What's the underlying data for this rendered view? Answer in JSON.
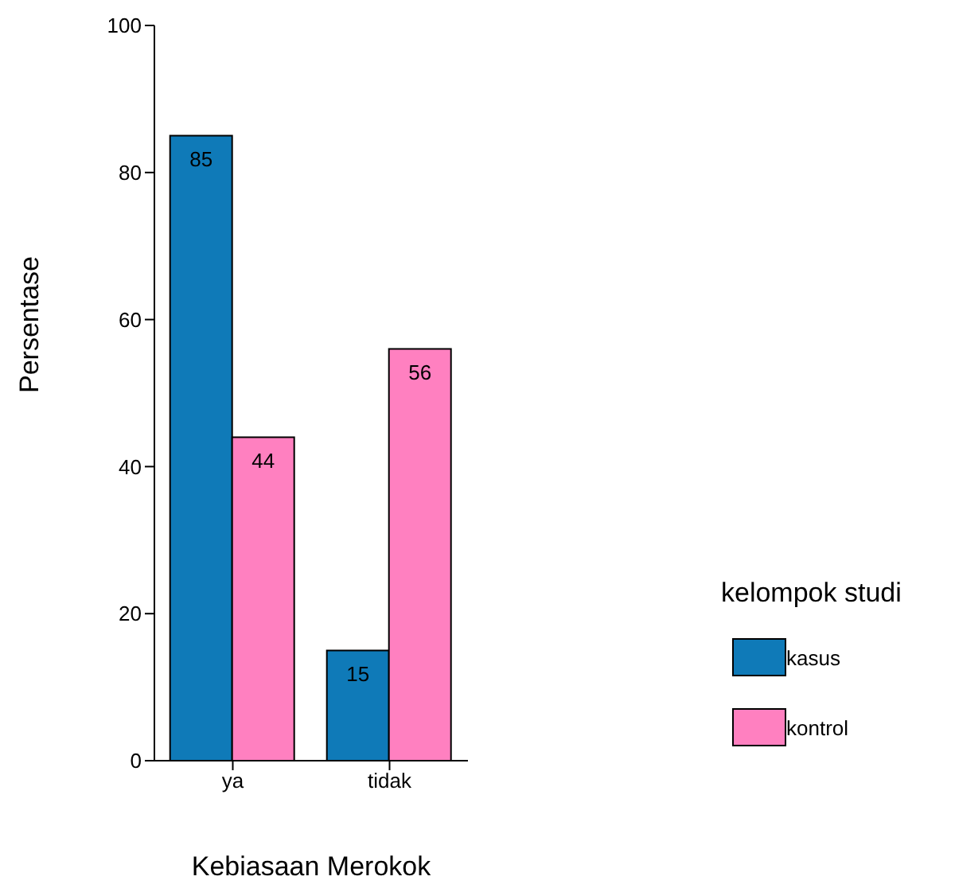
{
  "chart_data": {
    "type": "bar",
    "xlabel": "Kebiasaan Merokok",
    "ylabel": "Persentase",
    "legend_title": "kelompok studi",
    "categories": [
      "ya",
      "tidak"
    ],
    "series": [
      {
        "name": "kasus",
        "color": "#0f7ab8",
        "values": [
          85,
          15
        ]
      },
      {
        "name": "kontrol",
        "color": "#ff80c0",
        "values": [
          44,
          56
        ]
      }
    ],
    "ylim": [
      0,
      100
    ],
    "yticks": [
      0,
      20,
      40,
      60,
      80,
      100
    ],
    "data_labels": true,
    "legend": "right",
    "grid": false
  }
}
